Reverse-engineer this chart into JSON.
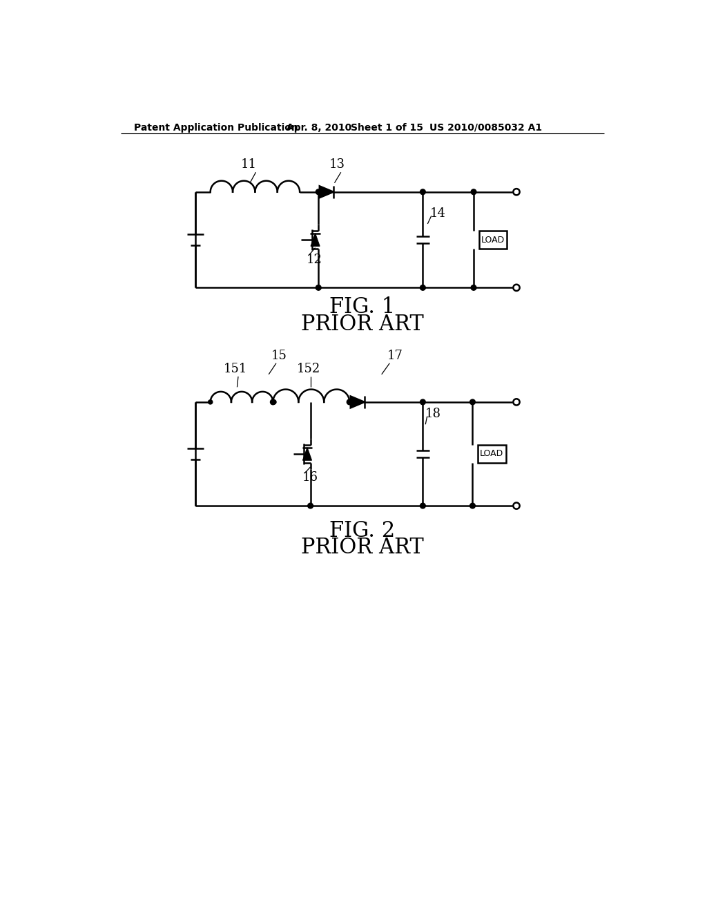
{
  "bg_color": "#ffffff",
  "line_color": "#000000",
  "line_width": 1.8,
  "header_text": "Patent Application Publication",
  "header_date": "Apr. 8, 2010",
  "header_sheet": "Sheet 1 of 15",
  "header_patent": "US 2010/0085032 A1",
  "fig1_label": "FIG. 1",
  "fig1_sub": "PRIOR ART",
  "fig2_label": "FIG. 2",
  "fig2_sub": "PRIOR ART",
  "label_11": "11",
  "label_12": "12",
  "label_13": "13",
  "label_14": "14",
  "label_15": "15",
  "label_151": "151",
  "label_152": "152",
  "label_16": "16",
  "label_17": "17",
  "label_18": "18",
  "label_load": "LOAD"
}
